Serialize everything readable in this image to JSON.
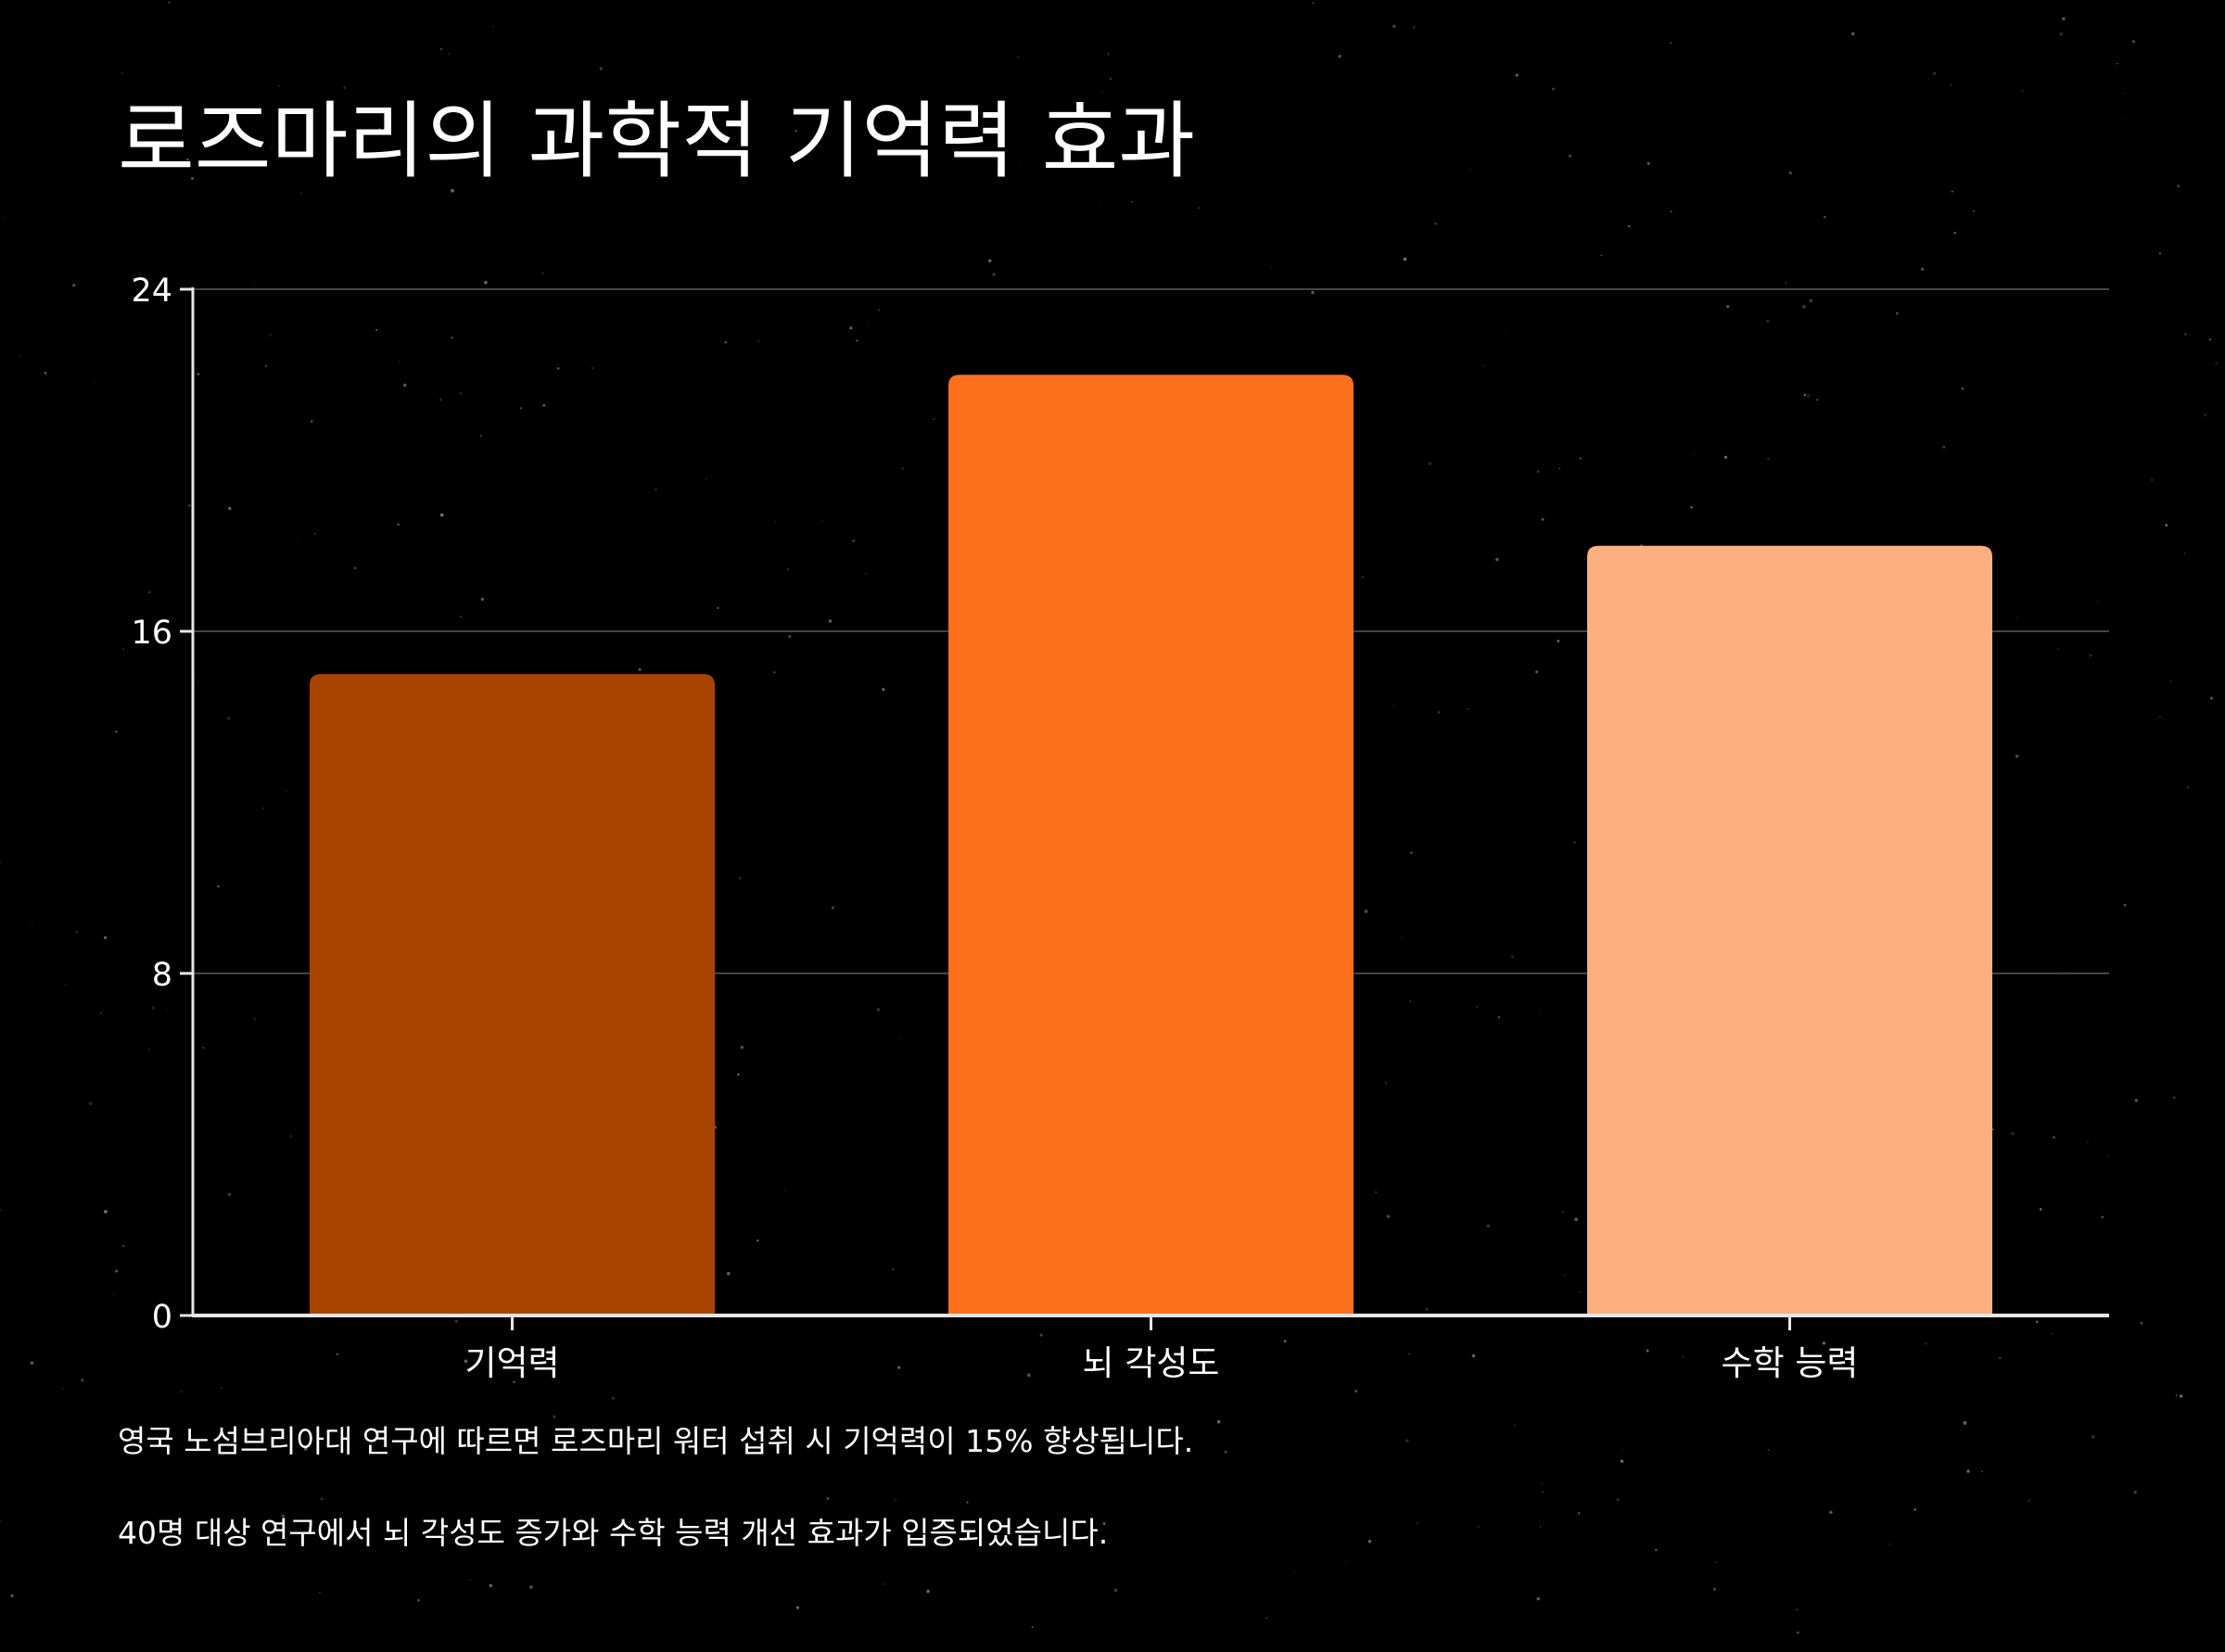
{
  "chart_data": {
    "type": "bar",
    "title": "로즈마리의 과학적 기억력 효과",
    "categories": [
      "기억력",
      "뇌 각성도",
      "수학 능력"
    ],
    "values": [
      15,
      22,
      18
    ],
    "colors": [
      "#A84300",
      "#FC6F1C",
      "#FDAF80"
    ],
    "ylim": [
      0,
      24
    ],
    "yticks": [
      0,
      8,
      16,
      24
    ],
    "grid": true,
    "xlabel": "",
    "ylabel": ""
  },
  "notes": [
    "영국 노섬브리아대 연구에 따르면 로즈마리 워터 섭취 시 기억력이 15% 향상됩니다.",
    "40명 대상 연구에서 뇌 각성도 증가와 수학 능력 개선 효과가 입증되었습니다."
  ],
  "theme": {
    "background": "#000000",
    "text": "#ffffff",
    "grid": "#444444",
    "axis": "#e6e6e6"
  }
}
